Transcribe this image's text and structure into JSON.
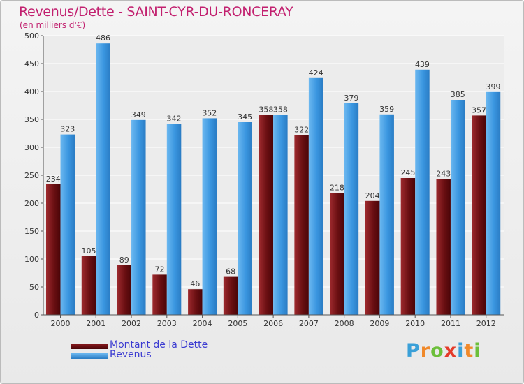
{
  "header": {
    "title": "Revenus/Dette - SAINT-CYR-DU-RONCERAY",
    "subtitle": "(en milliers d'€)"
  },
  "legend": {
    "items": [
      {
        "label": "Montant de la Dette",
        "color": "#6a0f12"
      },
      {
        "label": "Revenus",
        "color": "#3a96e0"
      }
    ]
  },
  "logo": {
    "text": "Proxiti",
    "letters": [
      "P",
      "r",
      "o",
      "x",
      "i",
      "t",
      "i"
    ],
    "colors": [
      "#3aa0d8",
      "#f0892a",
      "#6cbf3a",
      "#e43b2a",
      "#3aa0d8",
      "#f0892a",
      "#6cbf3a"
    ]
  },
  "chart_data": {
    "type": "bar",
    "title": "Revenus/Dette - SAINT-CYR-DU-RONCERAY",
    "ylabel": "(en milliers d'€)",
    "xlabel": "",
    "categories": [
      "2000",
      "2001",
      "2002",
      "2003",
      "2004",
      "2005",
      "2006",
      "2007",
      "2008",
      "2009",
      "2010",
      "2011",
      "2012"
    ],
    "series": [
      {
        "name": "Montant de la Dette",
        "color": "#6a0f12",
        "values": [
          234,
          105,
          89,
          72,
          46,
          68,
          358,
          322,
          218,
          204,
          245,
          243,
          357
        ]
      },
      {
        "name": "Revenus",
        "color": "#3a96e0",
        "values": [
          323,
          486,
          349,
          342,
          352,
          345,
          358,
          424,
          379,
          359,
          439,
          385,
          399
        ]
      }
    ],
    "ylim": [
      0,
      500
    ],
    "yticks": [
      0,
      50,
      100,
      150,
      200,
      250,
      300,
      350,
      400,
      450,
      500
    ],
    "grid": true,
    "legend_position": "bottom-left"
  }
}
